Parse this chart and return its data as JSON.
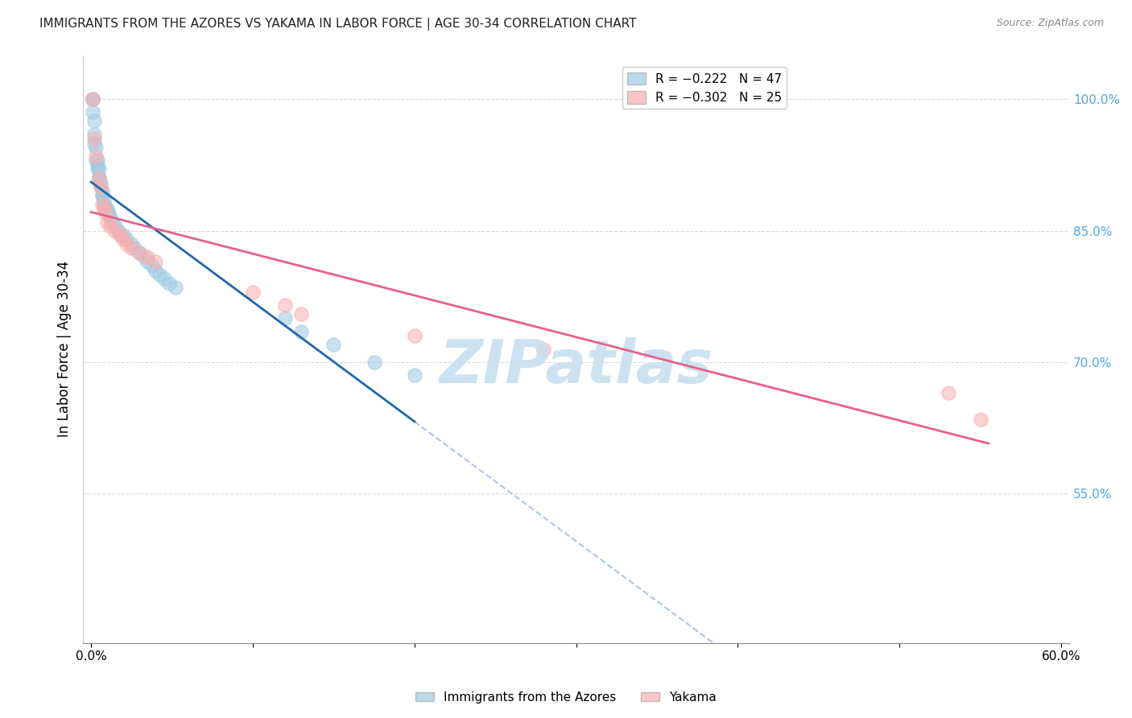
{
  "title": "IMMIGRANTS FROM THE AZORES VS YAKAMA IN LABOR FORCE | AGE 30-34 CORRELATION CHART",
  "source": "Source: ZipAtlas.com",
  "ylabel": "In Labor Force | Age 30-34",
  "xlim": [
    -0.005,
    0.605
  ],
  "ylim": [
    0.38,
    1.05
  ],
  "xticks": [
    0.0,
    0.1,
    0.2,
    0.3,
    0.4,
    0.5,
    0.6
  ],
  "xticklabels": [
    "0.0%",
    "",
    "",
    "",
    "",
    "",
    "60.0%"
  ],
  "yticks_right": [
    1.0,
    0.85,
    0.7,
    0.55
  ],
  "ytick_labels_right": [
    "100.0%",
    "85.0%",
    "70.0%",
    "55.0%"
  ],
  "legend_text_blue": "R = −0.222   N = 47",
  "legend_text_pink": "R = −0.302   N = 25",
  "blue_color": "#9ecae1",
  "pink_color": "#fcaeae",
  "blue_line_color": "#2166ac",
  "pink_line_color": "#e8608a",
  "dashed_line_color": "#aac8e8",
  "watermark": "ZIPatlas",
  "watermark_color": "#c8dff0",
  "blue_x": [
    0.001,
    0.001,
    0.001,
    0.002,
    0.002,
    0.002,
    0.003,
    0.003,
    0.004,
    0.004,
    0.004,
    0.005,
    0.005,
    0.005,
    0.006,
    0.006,
    0.007,
    0.007,
    0.007,
    0.008,
    0.008,
    0.009,
    0.009,
    0.01,
    0.011,
    0.012,
    0.013,
    0.015,
    0.017,
    0.02,
    0.022,
    0.025,
    0.027,
    0.03,
    0.033,
    0.035,
    0.038,
    0.04,
    0.042,
    0.045,
    0.048,
    0.052,
    0.12,
    0.13,
    0.15,
    0.175,
    0.2
  ],
  "blue_y": [
    1.0,
    1.0,
    0.985,
    0.975,
    0.96,
    0.95,
    0.945,
    0.93,
    0.93,
    0.925,
    0.92,
    0.92,
    0.91,
    0.91,
    0.905,
    0.9,
    0.895,
    0.89,
    0.89,
    0.885,
    0.88,
    0.875,
    0.875,
    0.875,
    0.87,
    0.865,
    0.86,
    0.855,
    0.85,
    0.845,
    0.84,
    0.835,
    0.83,
    0.825,
    0.82,
    0.815,
    0.81,
    0.805,
    0.8,
    0.795,
    0.79,
    0.785,
    0.75,
    0.735,
    0.72,
    0.7,
    0.685
  ],
  "pink_x": [
    0.001,
    0.002,
    0.003,
    0.005,
    0.006,
    0.007,
    0.008,
    0.009,
    0.01,
    0.012,
    0.015,
    0.018,
    0.02,
    0.022,
    0.025,
    0.03,
    0.035,
    0.04,
    0.1,
    0.12,
    0.13,
    0.2,
    0.28,
    0.53,
    0.55
  ],
  "pink_y": [
    1.0,
    0.955,
    0.935,
    0.91,
    0.9,
    0.88,
    0.875,
    0.87,
    0.86,
    0.855,
    0.85,
    0.845,
    0.84,
    0.835,
    0.83,
    0.825,
    0.82,
    0.815,
    0.78,
    0.765,
    0.755,
    0.73,
    0.715,
    0.665,
    0.635
  ],
  "background_color": "#ffffff",
  "grid_color": "#d8d8d8"
}
